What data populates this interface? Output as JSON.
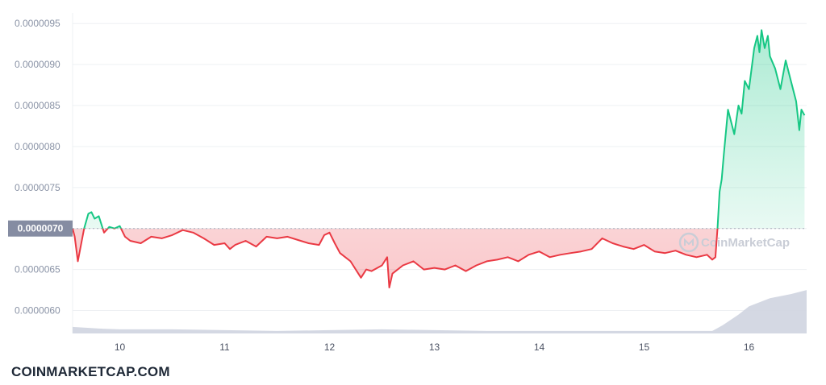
{
  "footer": {
    "brand": "COINMARKETCAP.COM"
  },
  "watermark": {
    "text": "CoinMarketCap",
    "icon": "coinmarketcap-logo-icon"
  },
  "colors": {
    "up": "#16c784",
    "down": "#ea3943",
    "volume": "#cfd4e0",
    "grid": "#eef0f3",
    "ref_label_bg": "#858ca2"
  },
  "chart_data": {
    "type": "line",
    "title": "",
    "xlabel": "",
    "ylabel": "",
    "x_tick_labels": [
      "10",
      "11",
      "12",
      "13",
      "14",
      "15",
      "16"
    ],
    "x_tick_values": [
      10,
      11,
      12,
      13,
      14,
      15,
      16
    ],
    "xlim": [
      9.55,
      16.55
    ],
    "y_tick_labels": [
      "0.0000095",
      "0.0000090",
      "0.0000085",
      "0.0000080",
      "0.0000075",
      "0.0000070",
      "0.0000065",
      "0.0000060"
    ],
    "y_tick_values": [
      9.5e-06,
      9e-06,
      8.5e-06,
      8e-06,
      7.5e-06,
      7e-06,
      6.5e-06,
      6e-06
    ],
    "ylim": [
      5.72e-06,
      9.63e-06
    ],
    "reference_line": {
      "value": 7e-06,
      "label": "0.0000070"
    },
    "grid": true,
    "series": [
      {
        "x": [
          9.55,
          9.57,
          9.6,
          9.63,
          9.66,
          9.7,
          9.73,
          9.76,
          9.8,
          9.85,
          9.9,
          9.95,
          10.0,
          10.05,
          10.1,
          10.2,
          10.3,
          10.4,
          10.5,
          10.6,
          10.7,
          10.8,
          10.9,
          11.0,
          11.05,
          11.1,
          11.2,
          11.3,
          11.4,
          11.5,
          11.6,
          11.7,
          11.8,
          11.9,
          11.95,
          12.0,
          12.05,
          12.1,
          12.2,
          12.3,
          12.35,
          12.4,
          12.5,
          12.55,
          12.57,
          12.6,
          12.7,
          12.8,
          12.9,
          13.0,
          13.1,
          13.2,
          13.3,
          13.4,
          13.5,
          13.6,
          13.7,
          13.8,
          13.9,
          14.0,
          14.1,
          14.2,
          14.3,
          14.4,
          14.5,
          14.6,
          14.7,
          14.8,
          14.9,
          15.0,
          15.1,
          15.2,
          15.3,
          15.4,
          15.5,
          15.6,
          15.65,
          15.68,
          15.7,
          15.72,
          15.74,
          15.76,
          15.8,
          15.83,
          15.86,
          15.9,
          15.93,
          15.96,
          16.0,
          16.02,
          16.05,
          16.08,
          16.1,
          16.12,
          16.15,
          16.18,
          16.2,
          16.25,
          16.3,
          16.35,
          16.4,
          16.45,
          16.48,
          16.5,
          16.53
        ],
        "values": [
          7e-06,
          6.9e-06,
          6.6e-06,
          6.8e-06,
          7e-06,
          7.18e-06,
          7.2e-06,
          7.12e-06,
          7.15e-06,
          6.95e-06,
          7.02e-06,
          7e-06,
          7.03e-06,
          6.9e-06,
          6.85e-06,
          6.82e-06,
          6.9e-06,
          6.88e-06,
          6.92e-06,
          6.98e-06,
          6.95e-06,
          6.88e-06,
          6.8e-06,
          6.82e-06,
          6.75e-06,
          6.8e-06,
          6.85e-06,
          6.78e-06,
          6.9e-06,
          6.88e-06,
          6.9e-06,
          6.86e-06,
          6.82e-06,
          6.8e-06,
          6.92e-06,
          6.95e-06,
          6.82e-06,
          6.7e-06,
          6.6e-06,
          6.4e-06,
          6.5e-06,
          6.48e-06,
          6.55e-06,
          6.65e-06,
          6.28e-06,
          6.45e-06,
          6.55e-06,
          6.6e-06,
          6.5e-06,
          6.52e-06,
          6.5e-06,
          6.55e-06,
          6.48e-06,
          6.55e-06,
          6.6e-06,
          6.62e-06,
          6.65e-06,
          6.6e-06,
          6.68e-06,
          6.72e-06,
          6.65e-06,
          6.68e-06,
          6.7e-06,
          6.72e-06,
          6.75e-06,
          6.88e-06,
          6.82e-06,
          6.78e-06,
          6.75e-06,
          6.8e-06,
          6.72e-06,
          6.7e-06,
          6.73e-06,
          6.68e-06,
          6.65e-06,
          6.68e-06,
          6.62e-06,
          6.65e-06,
          7e-06,
          7.45e-06,
          7.6e-06,
          7.9e-06,
          8.45e-06,
          8.3e-06,
          8.15e-06,
          8.5e-06,
          8.4e-06,
          8.8e-06,
          8.7e-06,
          8.9e-06,
          9.2e-06,
          9.35e-06,
          9.15e-06,
          9.42e-06,
          9.2e-06,
          9.35e-06,
          9.1e-06,
          8.95e-06,
          8.7e-06,
          9.05e-06,
          8.8e-06,
          8.55e-06,
          8.2e-06,
          8.45e-06,
          8.38e-06
        ]
      },
      {
        "name": "Volume",
        "type": "area",
        "x": [
          9.55,
          9.8,
          10.0,
          10.5,
          11.0,
          11.5,
          12.0,
          12.5,
          13.0,
          13.5,
          14.0,
          14.5,
          15.0,
          15.5,
          15.65,
          15.75,
          15.9,
          16.0,
          16.2,
          16.4,
          16.55
        ],
        "values": [
          5.8e-06,
          5.78e-06,
          5.77e-06,
          5.77e-06,
          5.76e-06,
          5.75e-06,
          5.76e-06,
          5.77e-06,
          5.76e-06,
          5.75e-06,
          5.75e-06,
          5.75e-06,
          5.75e-06,
          5.75e-06,
          5.75e-06,
          5.82e-06,
          5.95e-06,
          6.05e-06,
          6.15e-06,
          6.2e-06,
          6.25e-06
        ]
      }
    ]
  }
}
